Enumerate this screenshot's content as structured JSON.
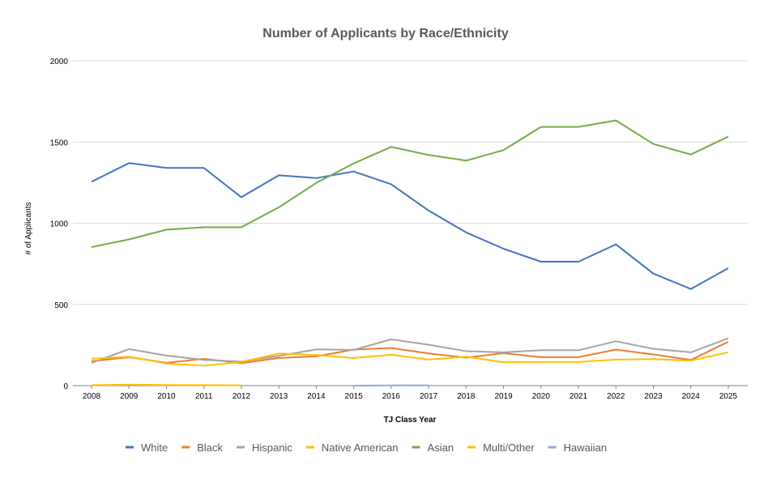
{
  "chart_data": {
    "type": "line",
    "title": "Number of Applicants by Race/Ethnicity",
    "xlabel": "TJ Class Year",
    "ylabel": "# of Applicants",
    "ylim": [
      0,
      2000
    ],
    "yticks": [
      0,
      500,
      1000,
      1500,
      2000
    ],
    "grid": true,
    "legend_position": "bottom",
    "categories": [
      "2008",
      "2009",
      "2010",
      "2011",
      "2012",
      "2013",
      "2014",
      "2015",
      "2016",
      "2017",
      "2018",
      "2019",
      "2020",
      "2021",
      "2022",
      "2023",
      "2024",
      "2025"
    ],
    "series": [
      {
        "name": "White",
        "color": "#4472c4",
        "values": [
          1255,
          1370,
          1340,
          1340,
          1160,
          1295,
          1278,
          1318,
          1240,
          1078,
          943,
          843,
          763,
          763,
          870,
          690,
          595,
          723
        ]
      },
      {
        "name": "Black",
        "color": "#ed7d31",
        "values": [
          150,
          175,
          140,
          165,
          138,
          170,
          180,
          222,
          232,
          198,
          172,
          200,
          175,
          175,
          222,
          192,
          158,
          270
        ]
      },
      {
        "name": "Hispanic",
        "color": "#a5a5a5",
        "values": [
          140,
          225,
          185,
          158,
          148,
          183,
          223,
          220,
          285,
          252,
          212,
          205,
          218,
          218,
          273,
          227,
          205,
          292
        ]
      },
      {
        "name": "Native American",
        "color": "#ffc000",
        "values": [
          3,
          6,
          4,
          3,
          2,
          null,
          null,
          null,
          null,
          null,
          null,
          null,
          null,
          null,
          null,
          null,
          null,
          null
        ]
      },
      {
        "name": "Asian",
        "color": "#70ad47",
        "values": [
          853,
          900,
          960,
          975,
          975,
          1098,
          1248,
          1368,
          1470,
          1420,
          1385,
          1450,
          1593,
          1593,
          1633,
          1488,
          1423,
          1533
        ]
      },
      {
        "name": "Multi/Other",
        "color": "#ffc000",
        "values": [
          165,
          178,
          136,
          123,
          145,
          198,
          188,
          170,
          190,
          160,
          178,
          144,
          146,
          146,
          160,
          163,
          154,
          205
        ]
      },
      {
        "name": "Hawaiian",
        "color": "#8faadc",
        "values": [
          null,
          null,
          null,
          null,
          null,
          null,
          null,
          0,
          1,
          2,
          null,
          null,
          null,
          null,
          null,
          null,
          null,
          null
        ]
      }
    ]
  }
}
